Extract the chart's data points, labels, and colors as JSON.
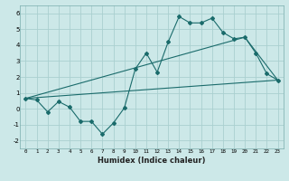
{
  "title": "",
  "xlabel": "Humidex (Indice chaleur)",
  "background_color": "#cce8e8",
  "grid_color": "#aacfcf",
  "line_color": "#1a6b6b",
  "xlim": [
    -0.5,
    23.5
  ],
  "ylim": [
    -2.5,
    6.5
  ],
  "xticks": [
    0,
    1,
    2,
    3,
    4,
    5,
    6,
    7,
    8,
    9,
    10,
    11,
    12,
    13,
    14,
    15,
    16,
    17,
    18,
    19,
    20,
    21,
    22,
    23
  ],
  "yticks": [
    -2,
    -1,
    0,
    1,
    2,
    3,
    4,
    5,
    6
  ],
  "series1_x": [
    0,
    1,
    2,
    3,
    4,
    5,
    6,
    7,
    8,
    9,
    10,
    11,
    12,
    13,
    14,
    15,
    16,
    17,
    18,
    19,
    20,
    21,
    22,
    23
  ],
  "series1_y": [
    0.65,
    0.55,
    -0.2,
    0.45,
    0.1,
    -0.8,
    -0.8,
    -1.6,
    -0.9,
    0.05,
    2.5,
    3.5,
    2.3,
    4.2,
    5.8,
    5.4,
    5.4,
    5.7,
    4.8,
    4.4,
    4.5,
    3.5,
    2.2,
    1.8
  ],
  "series2_x": [
    0,
    23
  ],
  "series2_y": [
    0.65,
    1.8
  ],
  "series3_x": [
    0,
    20,
    23
  ],
  "series3_y": [
    0.65,
    4.5,
    1.8
  ]
}
